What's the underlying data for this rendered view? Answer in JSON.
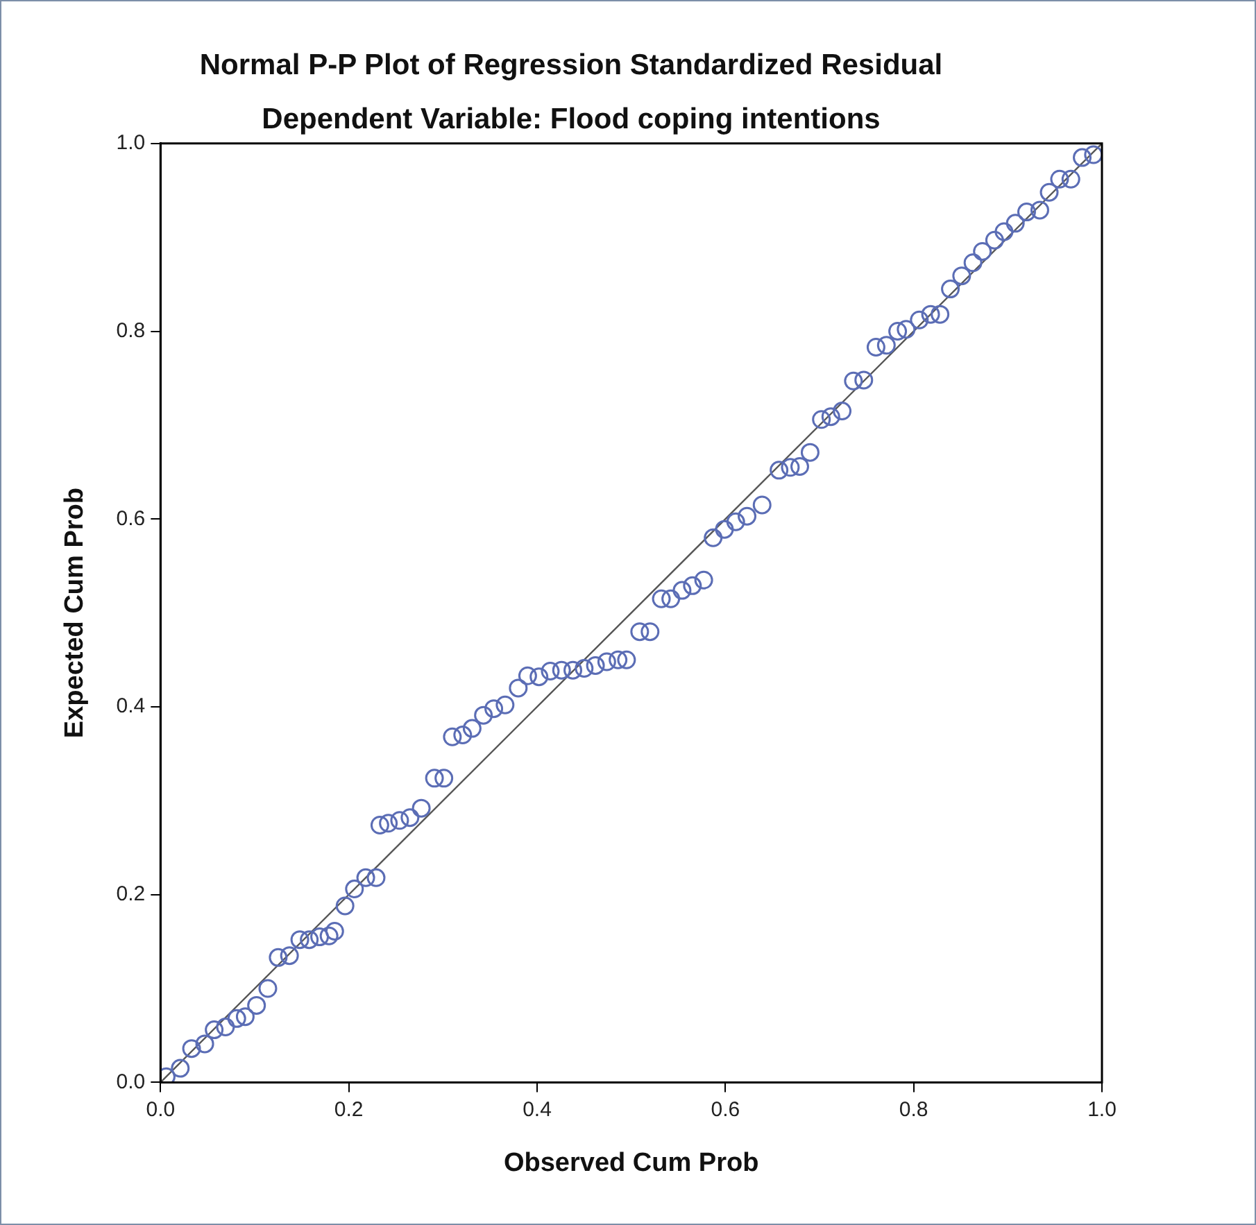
{
  "chart_data": {
    "type": "scatter",
    "title": "Normal P-P Plot of Regression Standardized Residual",
    "subtitle": "Dependent Variable: Flood coping intentions",
    "xlabel": "Observed Cum Prob",
    "ylabel": "Expected Cum Prob",
    "xlim": [
      0,
      1
    ],
    "ylim": [
      0,
      1
    ],
    "xticks": [
      {
        "value": 0,
        "label": "0.0"
      },
      {
        "value": 0.2,
        "label": "0.2"
      },
      {
        "value": 0.4,
        "label": "0.4"
      },
      {
        "value": 0.6,
        "label": "0.6"
      },
      {
        "value": 0.8,
        "label": "0.8"
      },
      {
        "value": 1,
        "label": "1.0"
      }
    ],
    "yticks": [
      {
        "value": 0,
        "label": "0.0"
      },
      {
        "value": 0.2,
        "label": "0.2"
      },
      {
        "value": 0.4,
        "label": "0.4"
      },
      {
        "value": 0.6,
        "label": "0.6"
      },
      {
        "value": 0.8,
        "label": "0.8"
      },
      {
        "value": 1,
        "label": "1.0"
      }
    ],
    "grid": false,
    "legend": false,
    "series": [
      {
        "marker": "circle",
        "color": "#5b6db5",
        "x": [
          0.006,
          0.021,
          0.033,
          0.047,
          0.057,
          0.069,
          0.081,
          0.09,
          0.102,
          0.114,
          0.125,
          0.137,
          0.148,
          0.158,
          0.169,
          0.179,
          0.185,
          0.196,
          0.206,
          0.218,
          0.229,
          0.233,
          0.242,
          0.254,
          0.265,
          0.277,
          0.291,
          0.301,
          0.31,
          0.321,
          0.331,
          0.343,
          0.354,
          0.366,
          0.38,
          0.39,
          0.402,
          0.414,
          0.426,
          0.438,
          0.45,
          0.462,
          0.474,
          0.486,
          0.495,
          0.509,
          0.52,
          0.532,
          0.542,
          0.554,
          0.565,
          0.577,
          0.587,
          0.599,
          0.611,
          0.623,
          0.639,
          0.657,
          0.669,
          0.679,
          0.69,
          0.702,
          0.712,
          0.724,
          0.736,
          0.747,
          0.76,
          0.771,
          0.783,
          0.792,
          0.806,
          0.818,
          0.828,
          0.839,
          0.851,
          0.863,
          0.873,
          0.886,
          0.896,
          0.908,
          0.92,
          0.934,
          0.944,
          0.955,
          0.967,
          0.979,
          0.991
        ],
        "values": [
          0.006,
          0.015,
          0.036,
          0.041,
          0.056,
          0.059,
          0.068,
          0.07,
          0.082,
          0.1,
          0.133,
          0.135,
          0.152,
          0.152,
          0.155,
          0.156,
          0.161,
          0.188,
          0.206,
          0.218,
          0.218,
          0.274,
          0.276,
          0.279,
          0.282,
          0.292,
          0.324,
          0.324,
          0.368,
          0.37,
          0.377,
          0.391,
          0.398,
          0.402,
          0.42,
          0.433,
          0.432,
          0.438,
          0.439,
          0.439,
          0.441,
          0.444,
          0.448,
          0.45,
          0.45,
          0.48,
          0.48,
          0.515,
          0.515,
          0.524,
          0.529,
          0.535,
          0.58,
          0.589,
          0.597,
          0.603,
          0.615,
          0.652,
          0.655,
          0.656,
          0.671,
          0.706,
          0.709,
          0.715,
          0.747,
          0.748,
          0.783,
          0.785,
          0.8,
          0.802,
          0.812,
          0.818,
          0.818,
          0.845,
          0.859,
          0.873,
          0.885,
          0.897,
          0.906,
          0.915,
          0.927,
          0.929,
          0.948,
          0.962,
          0.962,
          0.985,
          0.988
        ]
      },
      {
        "type": "line",
        "marker": "none",
        "line_style": "solid",
        "color": "#555555",
        "x": [
          0,
          1
        ],
        "values": [
          0,
          1
        ]
      }
    ]
  }
}
